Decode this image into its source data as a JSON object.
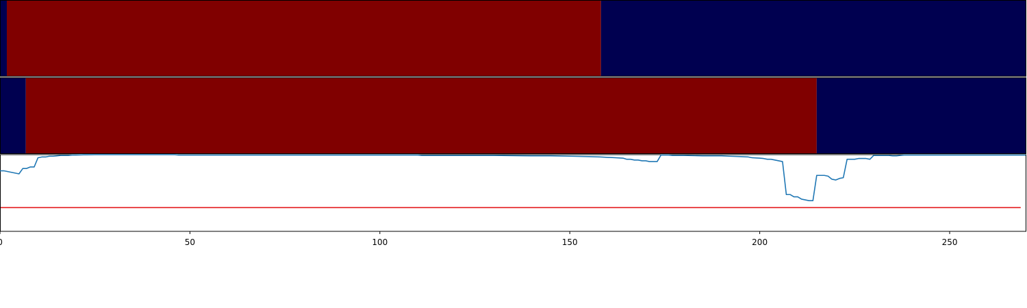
{
  "chart_data": [
    {
      "type": "heatmap",
      "xlim": [
        0,
        270
      ],
      "colors": {
        "low": "#000050",
        "high": "#800000"
      },
      "segments": [
        {
          "start": 0,
          "end": 1.8,
          "level": "low"
        },
        {
          "start": 1.8,
          "end": 158.2,
          "level": "high"
        },
        {
          "start": 158.2,
          "end": 270,
          "level": "low"
        }
      ]
    },
    {
      "type": "heatmap",
      "xlim": [
        0,
        270
      ],
      "colors": {
        "low": "#000050",
        "high": "#800000"
      },
      "segments": [
        {
          "start": 0,
          "end": 6.8,
          "level": "low"
        },
        {
          "start": 6.8,
          "end": 215.0,
          "level": "high"
        },
        {
          "start": 215.0,
          "end": 270,
          "level": "low"
        }
      ]
    },
    {
      "type": "line",
      "xlim": [
        0,
        270
      ],
      "ylim": [
        0,
        1
      ],
      "line_color": "#1f77b4",
      "threshold": {
        "y": 0.31,
        "color": "#e31a1c"
      },
      "x": [
        0,
        1,
        2,
        3,
        4,
        5,
        6,
        7,
        8,
        9,
        10,
        11,
        12,
        13,
        14,
        15,
        16,
        17,
        18,
        19,
        20,
        22,
        25,
        30,
        40,
        46,
        47,
        50,
        60,
        80,
        100,
        110,
        111,
        120,
        130,
        140,
        145,
        150,
        155,
        158,
        160,
        162,
        164,
        165,
        166,
        167,
        168,
        169,
        170,
        171,
        172,
        173,
        174,
        175,
        176,
        177,
        180,
        185,
        190,
        192,
        195,
        197,
        198,
        200,
        201,
        202,
        203,
        204,
        205,
        206,
        207,
        208,
        209,
        210,
        211,
        212,
        213,
        214,
        215,
        216,
        217,
        218,
        219,
        220,
        221,
        222,
        223,
        224,
        225,
        226,
        227,
        228,
        229,
        230,
        231,
        232,
        233,
        234,
        235,
        236,
        237,
        238,
        239,
        240,
        245,
        250,
        255,
        260,
        265,
        270
      ],
      "y": [
        0.79,
        0.79,
        0.78,
        0.77,
        0.76,
        0.75,
        0.82,
        0.82,
        0.84,
        0.84,
        0.96,
        0.97,
        0.97,
        0.98,
        0.98,
        0.985,
        0.99,
        0.99,
        0.99,
        0.995,
        0.995,
        0.998,
        1.0,
        1.0,
        1.0,
        1.0,
        0.995,
        0.995,
        0.995,
        0.995,
        0.995,
        0.995,
        0.99,
        0.99,
        0.99,
        0.985,
        0.985,
        0.98,
        0.975,
        0.97,
        0.965,
        0.96,
        0.955,
        0.94,
        0.94,
        0.93,
        0.93,
        0.92,
        0.92,
        0.91,
        0.91,
        0.91,
        0.995,
        0.995,
        0.995,
        0.99,
        0.99,
        0.985,
        0.985,
        0.98,
        0.975,
        0.97,
        0.96,
        0.955,
        0.95,
        0.94,
        0.94,
        0.93,
        0.92,
        0.91,
        0.48,
        0.48,
        0.45,
        0.45,
        0.42,
        0.41,
        0.4,
        0.4,
        0.73,
        0.73,
        0.73,
        0.72,
        0.68,
        0.67,
        0.69,
        0.7,
        0.94,
        0.94,
        0.94,
        0.95,
        0.95,
        0.95,
        0.94,
        0.99,
        0.99,
        0.99,
        0.99,
        0.99,
        0.985,
        0.985,
        0.99,
        0.995,
        0.995,
        0.995,
        0.995,
        0.995,
        0.995,
        0.995,
        0.995,
        0.995
      ],
      "xticks": [
        0,
        50,
        100,
        150,
        200,
        250
      ]
    }
  ]
}
